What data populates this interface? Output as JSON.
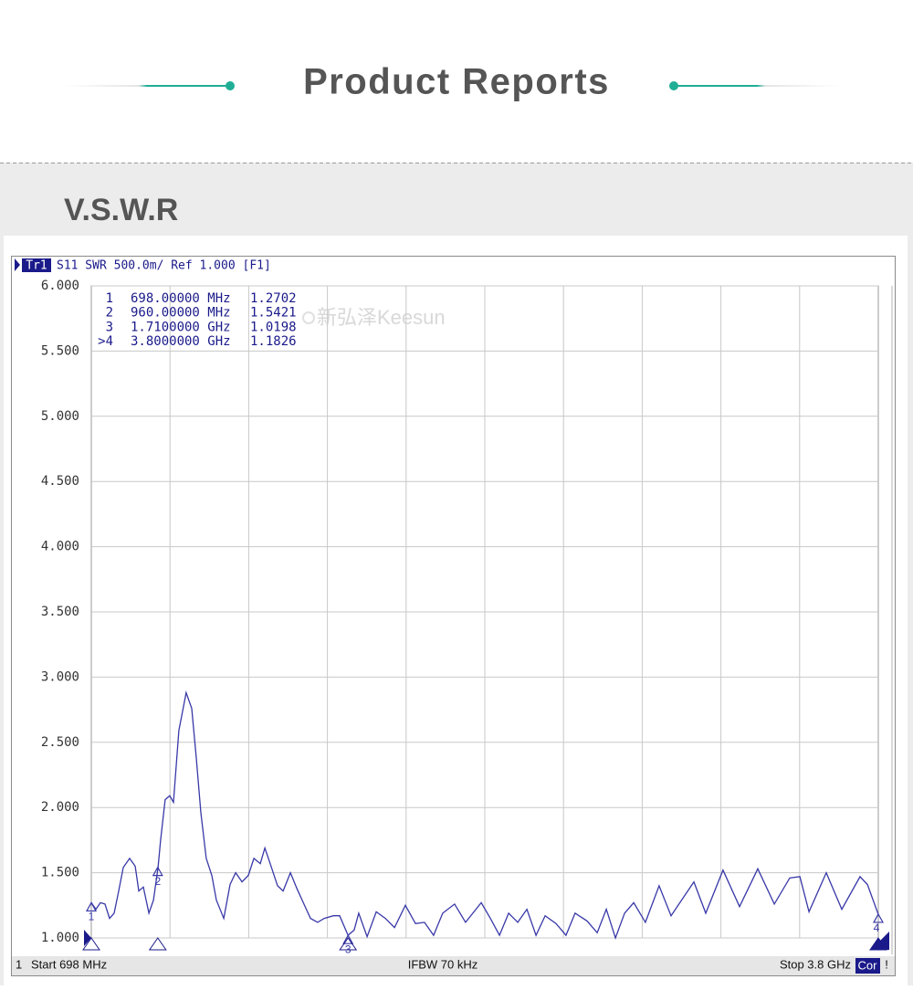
{
  "header": {
    "title": "Product Reports"
  },
  "section": {
    "title": "V.S.W.R"
  },
  "chart_data": {
    "type": "line",
    "channel": "Tr1",
    "trace_info": "S11 SWR 500.0m/ Ref 1.000 [F1]",
    "watermark": "新弘泽Keesun",
    "color": "#3838a8",
    "grid": true,
    "xlim": [
      698,
      3800
    ],
    "ylim": [
      1,
      6
    ],
    "yticks": [
      {
        "value": 1,
        "label": "1.000"
      },
      {
        "value": 1.5,
        "label": "1.500"
      },
      {
        "value": 2,
        "label": "2.000"
      },
      {
        "value": 2.5,
        "label": "2.500"
      },
      {
        "value": 3,
        "label": "3.000"
      },
      {
        "value": 3.5,
        "label": "3.500"
      },
      {
        "value": 4,
        "label": "4.000"
      },
      {
        "value": 4.5,
        "label": "4.500"
      },
      {
        "value": 5,
        "label": "5.000"
      },
      {
        "value": 5.5,
        "label": "5.500"
      },
      {
        "value": 6,
        "label": "6.000"
      }
    ],
    "x": [
      698,
      716,
      734,
      752,
      770,
      788,
      806,
      824,
      849,
      871,
      885,
      903,
      925,
      943,
      961,
      971,
      989,
      1007,
      1022,
      1043,
      1072,
      1094,
      1112,
      1130,
      1151,
      1173,
      1191,
      1220,
      1245,
      1267,
      1292,
      1317,
      1339,
      1364,
      1382,
      1403,
      1432,
      1454,
      1483,
      1508,
      1536,
      1562,
      1590,
      1616,
      1652,
      1677,
      1710,
      1734,
      1752,
      1785,
      1821,
      1857,
      1893,
      1936,
      1976,
      2011,
      2047,
      2083,
      2130,
      2173,
      2235,
      2271,
      2307,
      2343,
      2379,
      2415,
      2451,
      2487,
      2530,
      2569,
      2605,
      2652,
      2692,
      2728,
      2764,
      2800,
      2836,
      2882,
      2936,
      2983,
      3073,
      3120,
      3188,
      3253,
      3325,
      3390,
      3451,
      3491,
      3527,
      3595,
      3656,
      3728,
      3757,
      3800
    ],
    "values": [
      1.27,
      1.22,
      1.27,
      1.26,
      1.15,
      1.19,
      1.36,
      1.54,
      1.61,
      1.55,
      1.36,
      1.39,
      1.19,
      1.29,
      1.54,
      1.75,
      2.06,
      2.09,
      2.04,
      2.59,
      2.88,
      2.76,
      2.38,
      1.96,
      1.61,
      1.48,
      1.29,
      1.15,
      1.41,
      1.5,
      1.43,
      1.48,
      1.61,
      1.57,
      1.69,
      1.57,
      1.4,
      1.36,
      1.5,
      1.38,
      1.26,
      1.15,
      1.12,
      1.15,
      1.17,
      1.17,
      1.02,
      1.06,
      1.19,
      1.01,
      1.2,
      1.15,
      1.08,
      1.25,
      1.11,
      1.12,
      1.02,
      1.19,
      1.26,
      1.12,
      1.27,
      1.15,
      1.02,
      1.19,
      1.12,
      1.22,
      1.02,
      1.17,
      1.11,
      1.02,
      1.19,
      1.13,
      1.04,
      1.22,
      1.0,
      1.19,
      1.27,
      1.12,
      1.4,
      1.17,
      1.43,
      1.19,
      1.52,
      1.24,
      1.53,
      1.26,
      1.46,
      1.47,
      1.2,
      1.5,
      1.22,
      1.47,
      1.41,
      1.18
    ],
    "markers": [
      {
        "id": "1",
        "table_id": "1",
        "x": 698,
        "x_label": "698.00000 MHz",
        "value": 1.2702
      },
      {
        "id": "2",
        "table_id": "2",
        "x": 960,
        "x_label": "960.00000 MHz",
        "value": 1.5421
      },
      {
        "id": "3",
        "table_id": "3",
        "x": 1710,
        "x_label": "1.7100000 GHz",
        "value": 1.0198
      },
      {
        "id": "4",
        "table_id": ">4",
        "x": 3800,
        "x_label": "3.8000000 GHz",
        "value": 1.1826
      }
    ],
    "status": {
      "channel": "1",
      "start": "Start 698 MHz",
      "ifbw": "IFBW 70 kHz",
      "stop": "Stop 3.8 GHz",
      "cor": "Cor",
      "alert": "!"
    }
  }
}
